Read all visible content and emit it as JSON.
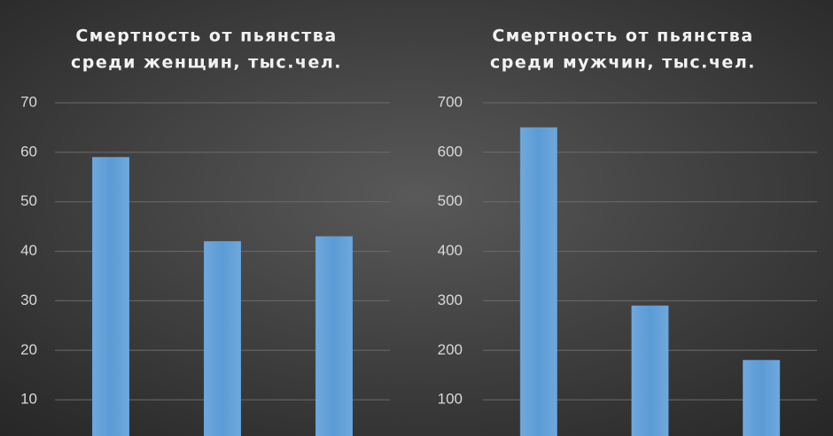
{
  "chart_data": [
    {
      "type": "bar",
      "title": [
        "Смертность от пьянства",
        "среди женщин, тыс.чел."
      ],
      "categories": [
        null,
        null,
        null
      ],
      "values": [
        59,
        42,
        43
      ],
      "color": "#5b9bd5",
      "ylim": [
        0,
        70
      ],
      "yticks": [
        10,
        20,
        30,
        40,
        50,
        60,
        70
      ],
      "grid": true
    },
    {
      "type": "bar",
      "title": [
        "Смертность от пьянства",
        "среди мужчин, тыс.чел."
      ],
      "categories": [
        null,
        null,
        null
      ],
      "values": [
        650,
        290,
        180
      ],
      "color": "#5b9bd5",
      "ylim": [
        0,
        700
      ],
      "yticks": [
        100,
        200,
        300,
        400,
        500,
        600,
        700
      ],
      "grid": true
    }
  ]
}
